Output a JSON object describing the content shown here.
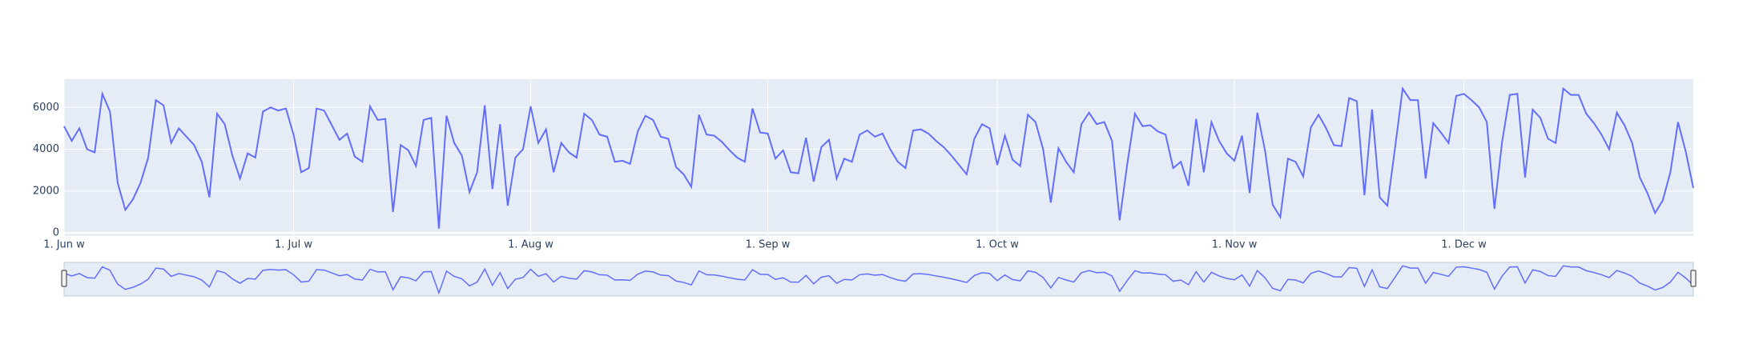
{
  "chart_data": {
    "type": "line",
    "series": [
      {
        "color": "#636efa",
        "values": [
          5100,
          4400,
          5000,
          4000,
          3850,
          6650,
          5800,
          2400,
          1100,
          1600,
          2400,
          3600,
          6350,
          6100,
          4300,
          5000,
          4600,
          4200,
          3400,
          1700,
          5700,
          5200,
          3700,
          2600,
          3800,
          3600,
          5800,
          6000,
          5850,
          5950,
          4700,
          2900,
          3100,
          5950,
          5850,
          5150,
          4450,
          4750,
          3650,
          3400,
          6050,
          5400,
          5450,
          1000,
          4200,
          3950,
          3200,
          5400,
          5500,
          200,
          5600,
          4300,
          3700,
          1950,
          2900,
          6100,
          2100,
          5200,
          1300,
          3600,
          4000,
          6050,
          4300,
          4950,
          2900,
          4300,
          3850,
          3600,
          5700,
          5400,
          4700,
          4600,
          3400,
          3450,
          3300,
          4850,
          5600,
          5400,
          4600,
          4500,
          3150,
          2800,
          2200,
          5650,
          4700,
          4650,
          4350,
          3950,
          3600,
          3400,
          5950,
          4800,
          4750,
          3550,
          3950,
          2900,
          2850,
          4550,
          2450,
          4100,
          4450,
          2600,
          3550,
          3400,
          4700,
          4900,
          4600,
          4750,
          4000,
          3400,
          3100,
          4900,
          4950,
          4750,
          4400,
          4100,
          3700,
          3250,
          2800,
          4500,
          5200,
          5000,
          3250,
          4650,
          3500,
          3200,
          5650,
          5300,
          4000,
          1450,
          4050,
          3400,
          2900,
          5200,
          5750,
          5200,
          5300,
          4400,
          600,
          3300,
          5700,
          5100,
          5150,
          4850,
          4700,
          3100,
          3400,
          2250,
          5450,
          2900,
          5300,
          4400,
          3800,
          3450,
          4650,
          1900,
          5750,
          3950,
          1350,
          750,
          3550,
          3400,
          2700,
          5050,
          5650,
          5000,
          4200,
          4150,
          6450,
          6300,
          1800,
          5900,
          1700,
          1300,
          4050,
          6900,
          6350,
          6350,
          2600,
          5250,
          4800,
          4300,
          6550,
          6650,
          6350,
          6000,
          5300,
          1150,
          4350,
          6600,
          6650,
          2650,
          5900,
          5500,
          4500,
          4300,
          6900,
          6600,
          6600,
          5700,
          5250,
          4700,
          4000,
          5750,
          5150,
          4300,
          2650,
          1900,
          950,
          1550,
          2900,
          5300,
          3900,
          2150
        ]
      }
    ],
    "xlim": [
      0,
      213
    ],
    "xticks": [
      {
        "value": 0,
        "label": "1. Jun w"
      },
      {
        "value": 30,
        "label": "1. Jul w"
      },
      {
        "value": 61,
        "label": "1. Aug w"
      },
      {
        "value": 92,
        "label": "1. Sep w"
      },
      {
        "value": 122,
        "label": "1. Oct w"
      },
      {
        "value": 153,
        "label": "1. Nov w"
      },
      {
        "value": 183,
        "label": "1. Dec w"
      }
    ],
    "ylim": [
      -150,
      7350
    ],
    "yticks": [
      0,
      2000,
      4000,
      6000
    ],
    "grid": true,
    "rangeslider": true
  }
}
